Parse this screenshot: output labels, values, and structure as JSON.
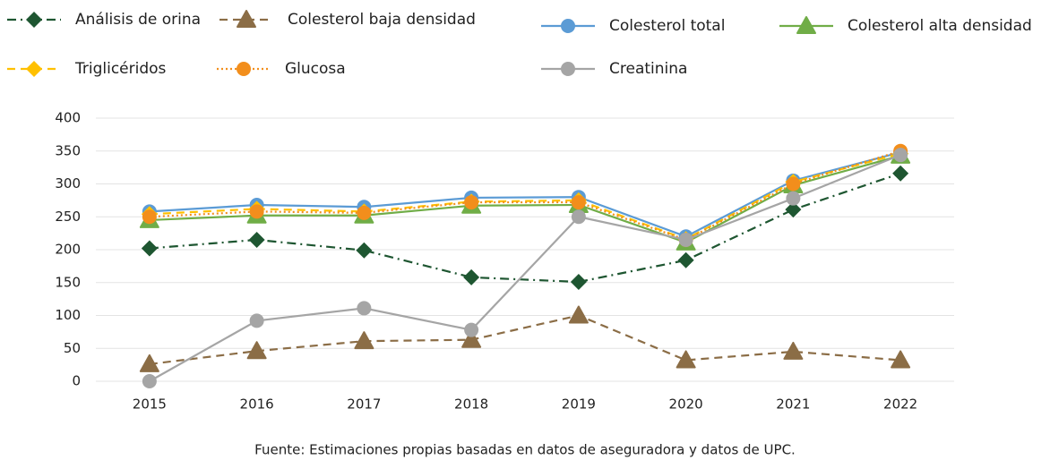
{
  "chart_data": {
    "type": "line",
    "caption": "Fuente: Estimaciones propias basadas en datos de aseguradora y datos de UPC.",
    "categories": [
      "2015",
      "2016",
      "2017",
      "2018",
      "2019",
      "2020",
      "2021",
      "2022"
    ],
    "ylim": [
      0,
      400
    ],
    "yticks": [
      0,
      50,
      100,
      150,
      200,
      250,
      300,
      350,
      400
    ],
    "grid": true,
    "series": [
      {
        "name": "Análisis de orina",
        "color": "#1e5631",
        "marker": "diamond",
        "line_style": "dash-dot",
        "values": [
          202,
          215,
          199,
          158,
          151,
          184,
          261,
          316
        ]
      },
      {
        "name": "Colesterol baja densidad",
        "color": "#8b6d46",
        "marker": "triangle",
        "line_style": "dashed",
        "values": [
          26,
          46,
          61,
          63,
          100,
          32,
          45,
          32
        ]
      },
      {
        "name": "Colesterol total",
        "color": "#5b9bd5",
        "marker": "circle",
        "line_style": "solid",
        "values": [
          258,
          268,
          265,
          279,
          280,
          220,
          305,
          348
        ]
      },
      {
        "name": "Colesterol alta densidad",
        "color": "#70ad47",
        "marker": "triangle",
        "line_style": "solid",
        "values": [
          245,
          252,
          252,
          267,
          268,
          211,
          298,
          343
        ]
      },
      {
        "name": "Triglicéridos",
        "color": "#ffc000",
        "marker": "diamond",
        "line_style": "dashed",
        "values": [
          254,
          262,
          258,
          273,
          275,
          216,
          303,
          346
        ]
      },
      {
        "name": "Glucosa",
        "color": "#f28e1c",
        "marker": "circle",
        "line_style": "dotted",
        "values": [
          250,
          258,
          256,
          272,
          272,
          215,
          300,
          350
        ]
      },
      {
        "name": "Creatinina",
        "color": "#a5a5a5",
        "marker": "circle",
        "line_style": "solid",
        "values": [
          0,
          92,
          111,
          78,
          250,
          215,
          278,
          344
        ]
      }
    ]
  }
}
